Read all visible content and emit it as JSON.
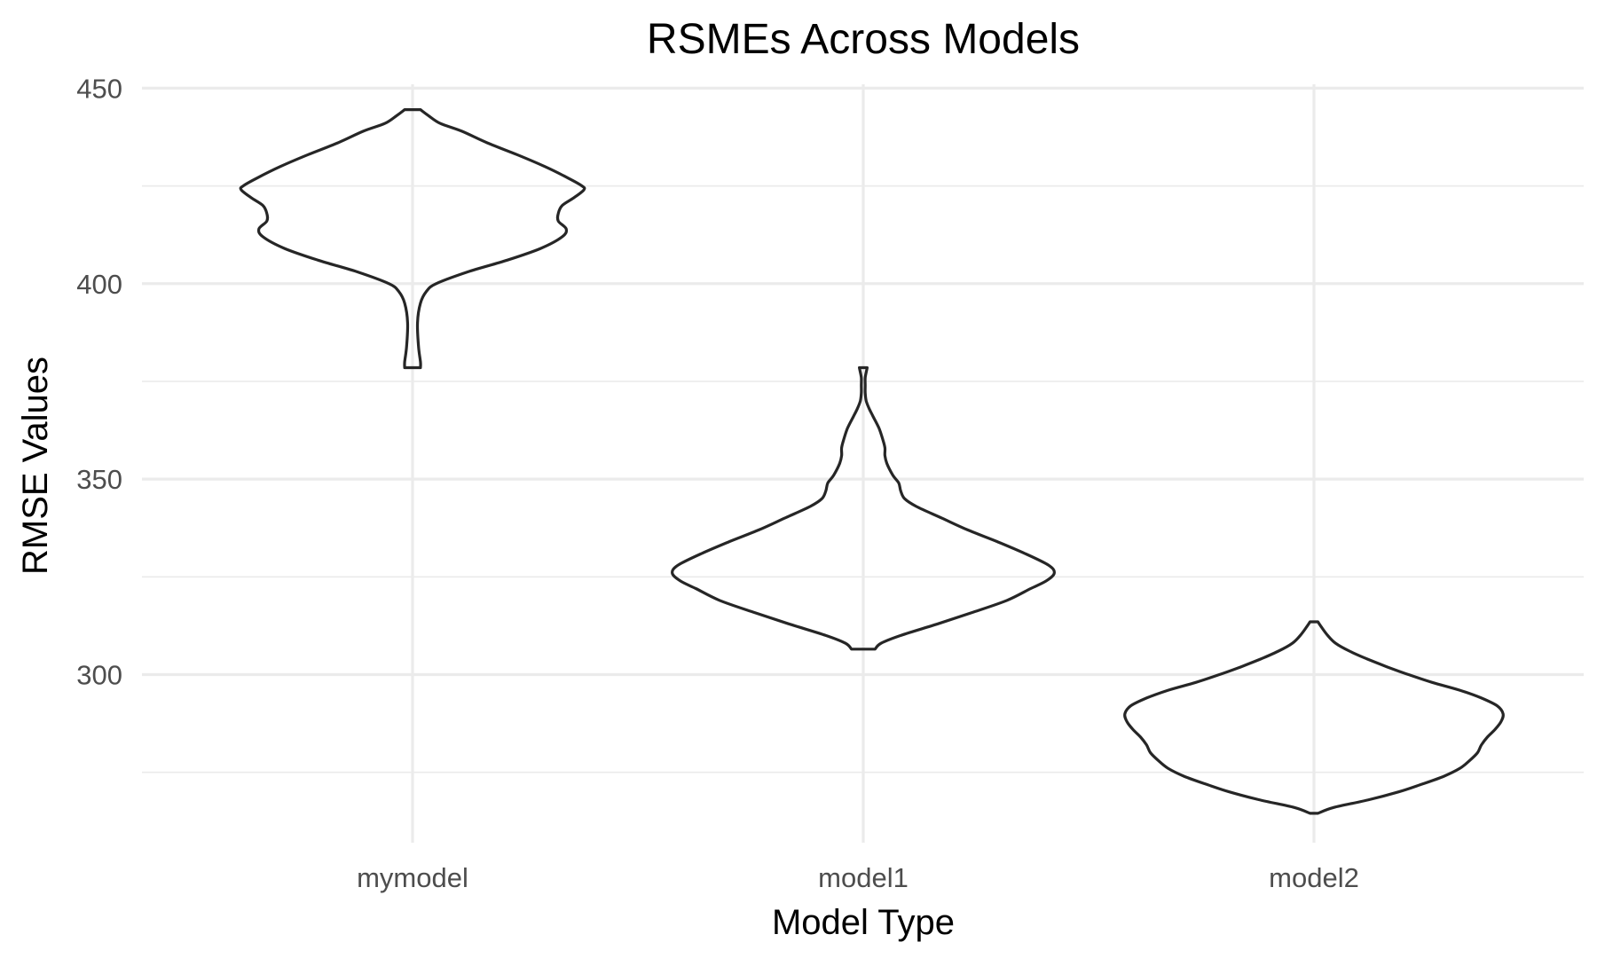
{
  "chart_data": {
    "type": "violin",
    "title": "RSMEs Across Models",
    "xlabel": "Model Type",
    "ylabel": "RMSE Values",
    "categories": [
      "mymodel",
      "model1",
      "model2"
    ],
    "ylim": [
      257,
      451
    ],
    "yticks": [
      300,
      350,
      400,
      450
    ],
    "yticks_minor": [
      275,
      325,
      375,
      425
    ],
    "grid": true,
    "legend": "none",
    "line_color": "#262626",
    "series": [
      {
        "category": "mymodel",
        "min": 378.5,
        "max": 444.5,
        "density": [
          [
            378.5,
            0.04
          ],
          [
            380,
            0.04
          ],
          [
            384,
            0.03
          ],
          [
            390,
            0.025
          ],
          [
            395,
            0.04
          ],
          [
            398,
            0.07
          ],
          [
            400,
            0.12
          ],
          [
            403,
            0.28
          ],
          [
            406,
            0.48
          ],
          [
            409,
            0.65
          ],
          [
            412,
            0.76
          ],
          [
            414,
            0.78
          ],
          [
            416,
            0.74
          ],
          [
            418,
            0.74
          ],
          [
            420,
            0.76
          ],
          [
            422,
            0.82
          ],
          [
            424,
            0.87
          ],
          [
            425,
            0.86
          ],
          [
            427,
            0.79
          ],
          [
            430,
            0.67
          ],
          [
            433,
            0.53
          ],
          [
            436,
            0.38
          ],
          [
            439,
            0.25
          ],
          [
            441,
            0.14
          ],
          [
            443,
            0.08
          ],
          [
            444.5,
            0.04
          ]
        ]
      },
      {
        "category": "model1",
        "min": 306.5,
        "max": 378.5,
        "density": [
          [
            306.5,
            0.06
          ],
          [
            308,
            0.09
          ],
          [
            310,
            0.19
          ],
          [
            313,
            0.38
          ],
          [
            316,
            0.56
          ],
          [
            319,
            0.73
          ],
          [
            322,
            0.85
          ],
          [
            324,
            0.93
          ],
          [
            326,
            0.97
          ],
          [
            328,
            0.94
          ],
          [
            331,
            0.82
          ],
          [
            334,
            0.68
          ],
          [
            337,
            0.53
          ],
          [
            340,
            0.4
          ],
          [
            343,
            0.27
          ],
          [
            345,
            0.21
          ],
          [
            347,
            0.19
          ],
          [
            349,
            0.18
          ],
          [
            351,
            0.15
          ],
          [
            354,
            0.12
          ],
          [
            356,
            0.11
          ],
          [
            358,
            0.11
          ],
          [
            360,
            0.1
          ],
          [
            363,
            0.08
          ],
          [
            366,
            0.05
          ],
          [
            368,
            0.03
          ],
          [
            370,
            0.015
          ],
          [
            372,
            0.01
          ],
          [
            374,
            0.01
          ],
          [
            376,
            0.01
          ],
          [
            378.5,
            0.02
          ]
        ]
      },
      {
        "category": "model2",
        "min": 264.5,
        "max": 313.5,
        "density": [
          [
            264.5,
            0.02
          ],
          [
            266,
            0.1
          ],
          [
            268,
            0.28
          ],
          [
            270,
            0.43
          ],
          [
            272,
            0.55
          ],
          [
            274,
            0.66
          ],
          [
            276,
            0.74
          ],
          [
            278,
            0.79
          ],
          [
            280,
            0.83
          ],
          [
            282,
            0.85
          ],
          [
            284,
            0.88
          ],
          [
            286,
            0.92
          ],
          [
            288,
            0.95
          ],
          [
            290,
            0.96
          ],
          [
            292,
            0.93
          ],
          [
            294,
            0.85
          ],
          [
            296,
            0.74
          ],
          [
            298,
            0.6
          ],
          [
            300,
            0.48
          ],
          [
            302,
            0.37
          ],
          [
            304,
            0.27
          ],
          [
            306,
            0.18
          ],
          [
            308,
            0.11
          ],
          [
            310,
            0.07
          ],
          [
            312,
            0.04
          ],
          [
            313.5,
            0.02
          ]
        ]
      }
    ]
  }
}
